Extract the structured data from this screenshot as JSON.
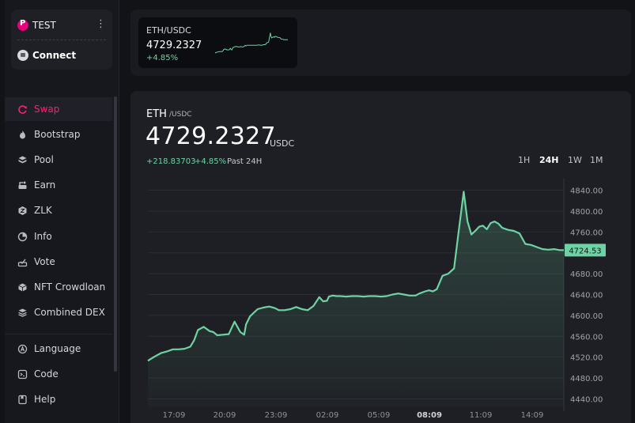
{
  "sidebar": {
    "network": "TEST",
    "menu_icon": "kebab-menu-icon",
    "connect": "Connect",
    "items": [
      {
        "label": "Swap",
        "icon": "swap-icon"
      },
      {
        "label": "Bootstrap",
        "icon": "flame-icon"
      },
      {
        "label": "Pool",
        "icon": "pool-icon"
      },
      {
        "label": "Earn",
        "icon": "earn-icon"
      },
      {
        "label": "ZLK",
        "icon": "zlk-icon"
      },
      {
        "label": "Info",
        "icon": "pie-chart-icon"
      },
      {
        "label": "Vote",
        "icon": "vote-icon"
      },
      {
        "label": "NFT Crowdloan",
        "icon": "nft-icon"
      },
      {
        "label": "Combined DEX",
        "icon": "layers-icon"
      },
      {
        "label": "Language",
        "icon": "language-icon"
      },
      {
        "label": "Code",
        "icon": "code-icon"
      },
      {
        "label": "Help",
        "icon": "help-icon"
      }
    ]
  },
  "pair_card": {
    "pair": "ETH/USDC",
    "price": "4729.2327",
    "change": "+4.85%"
  },
  "main": {
    "base": "ETH",
    "quote": "/USDC",
    "price": "4729.2327",
    "unit": "USDC",
    "change_abs": "+218.83703",
    "change_pct": "+4.85%",
    "period": "Past 24H",
    "timeframes": [
      "1H",
      "24H",
      "1W",
      "1M"
    ],
    "active_timeframe": "24H"
  },
  "colors": {
    "accent": "#f0246e",
    "line": "#6ed3a4",
    "positive": "#6ed3a4"
  },
  "chart_data": {
    "type": "area",
    "x_ticks": [
      "17:09",
      "20:09",
      "23:09",
      "02:09",
      "05:09",
      "08:09",
      "11:09",
      "14:09"
    ],
    "highlighted_x_tick": "08:09",
    "y_ticks": [
      "4840.00",
      "4800.00",
      "4760.00",
      "4720.00",
      "4680.00",
      "4640.00",
      "4600.00",
      "4560.00",
      "4520.00",
      "4480.00",
      "4440.00"
    ],
    "ylim": [
      4424,
      4856
    ],
    "current_label": "4724.53",
    "x": [
      0,
      0.3,
      0.7,
      1.0,
      1.3,
      1.6,
      1.9,
      2.2,
      2.4,
      2.6,
      2.9,
      3.2,
      3.4,
      3.6,
      3.9,
      4.2,
      4.5,
      4.8,
      5.0,
      5.1,
      5.3,
      5.5,
      5.7,
      6.0,
      6.3,
      6.6,
      6.8,
      7.1,
      7.4,
      7.7,
      8.0,
      8.3,
      8.6,
      8.9,
      9.1,
      9.3,
      9.4,
      9.6,
      9.8,
      10.0,
      10.3,
      10.6,
      10.9,
      11.2,
      11.5,
      11.8,
      12.1,
      12.4,
      12.7,
      13.0,
      13.3,
      13.6,
      13.9,
      14.1,
      14.4,
      14.6,
      14.8,
      15.0,
      15.3,
      15.6,
      15.9,
      16.1,
      16.4,
      16.6,
      16.8,
      17.0,
      17.2,
      17.4,
      17.6,
      17.8,
      18.0,
      18.2,
      18.4,
      18.7,
      19.0,
      19.3,
      19.6,
      19.9,
      20.2,
      20.5,
      20.8,
      21.1,
      21.4,
      21.6
    ],
    "y": [
      4513,
      4520,
      4528,
      4531,
      4535,
      4535,
      4536,
      4540,
      4552,
      4572,
      4578,
      4570,
      4568,
      4562,
      4563,
      4564,
      4588,
      4568,
      4563,
      4583,
      4598,
      4605,
      4612,
      4615,
      4617,
      4614,
      4610,
      4610,
      4612,
      4616,
      4612,
      4610,
      4618,
      4635,
      4627,
      4628,
      4636,
      4638,
      4637,
      4637,
      4636,
      4637,
      4637,
      4636,
      4637,
      4637,
      4636,
      4637,
      4640,
      4642,
      4640,
      4638,
      4638,
      4642,
      4646,
      4648,
      4646,
      4650,
      4676,
      4680,
      4690,
      4750,
      4837,
      4780,
      4755,
      4762,
      4770,
      4772,
      4765,
      4777,
      4780,
      4776,
      4768,
      4764,
      4762,
      4757,
      4737,
      4735,
      4731,
      4727,
      4726,
      4727,
      4725,
      4725
    ]
  }
}
